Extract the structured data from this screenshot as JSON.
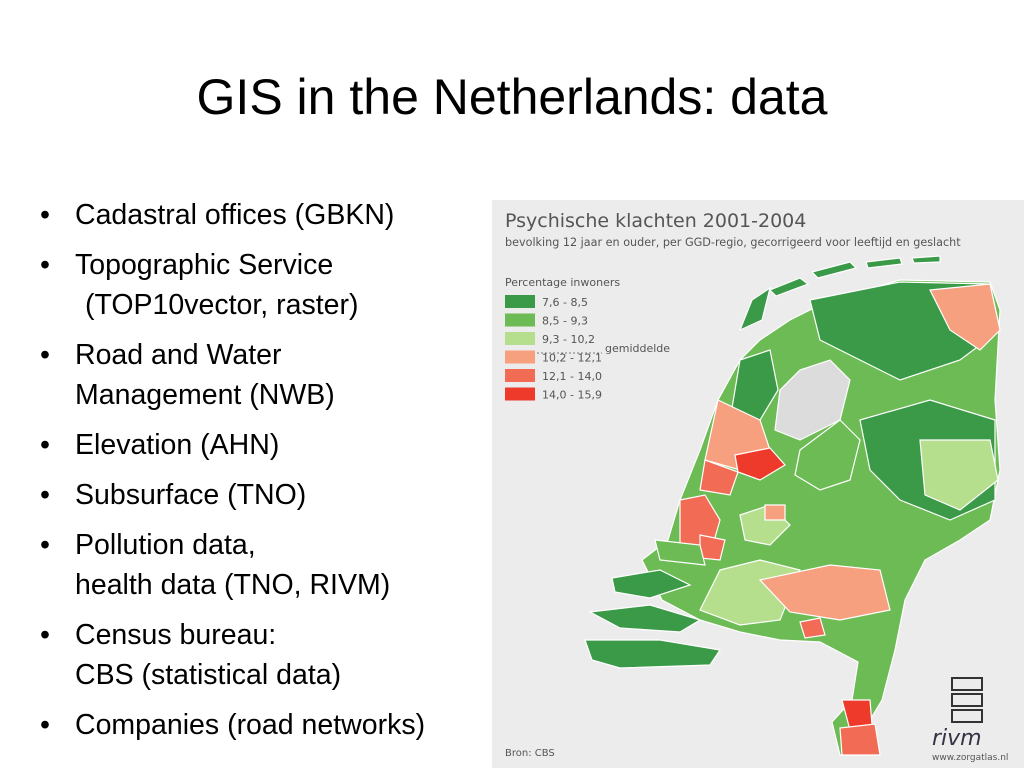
{
  "slide": {
    "title": "GIS in the Netherlands: data",
    "bullets": [
      [
        "Cadastral offices (GBKN)"
      ],
      [
        "Topographic Service",
        "(TOP10vector, raster)"
      ],
      [
        "Road and Water",
        "Management (NWB)"
      ],
      [
        "Elevation (AHN)"
      ],
      [
        "Subsurface (TNO)"
      ],
      [
        "Pollution data,",
        "health data (TNO, RIVM)"
      ],
      [
        "Census bureau:",
        "CBS (statistical data)"
      ],
      [
        "Companies (road networks)"
      ]
    ],
    "map": {
      "title": "Psychische klachten 2001-2004",
      "subtitle": "bevolking 12 jaar en ouder, per GGD-regio, gecorrigeerd voor leeftijd en geslacht",
      "legend_title": "Percentage inwoners",
      "legend": [
        {
          "label": "7,6 - 8,5",
          "color": "#3a9a48"
        },
        {
          "label": "8,5 - 9,3",
          "color": "#6dbb55"
        },
        {
          "label": "9,3 - 10,2",
          "color": "#b5de8d"
        },
        {
          "label": "10,2 - 12,1",
          "color": "#f7a07f"
        },
        {
          "label": "12,1 - 14,0",
          "color": "#f26c55"
        },
        {
          "label": "14,0 - 15,9",
          "color": "#ee3a2a"
        }
      ],
      "average_label": "gemiddelde",
      "source": "Bron: CBS",
      "logo_text": "rivm",
      "website": "www.zorgatlas.nl"
    }
  }
}
